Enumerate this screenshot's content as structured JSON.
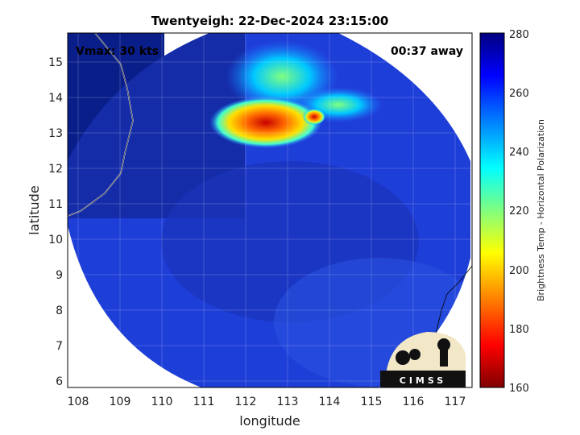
{
  "title": "Twentyeigh: 22-Dec-2024 23:15:00",
  "vmax_text": "Vmax: 30 kts",
  "time_text": "00:37 away",
  "x_axis": {
    "label": "longitude",
    "ticks": [
      "108",
      "109",
      "110",
      "111",
      "112",
      "113",
      "114",
      "115",
      "116",
      "117"
    ]
  },
  "y_axis": {
    "label": "latitude",
    "ticks": [
      "6",
      "7",
      "8",
      "9",
      "10",
      "11",
      "12",
      "13",
      "14",
      "15"
    ]
  },
  "colorbar": {
    "label": "Brightness Temp - Horizontal Polarization",
    "ticks": [
      "160",
      "180",
      "200",
      "220",
      "240",
      "260",
      "280"
    ],
    "min": 160,
    "max": 280,
    "colormap": [
      "#7f0000",
      "#ff0000",
      "#ff8000",
      "#ffff00",
      "#80ff80",
      "#00ffff",
      "#0080ff",
      "#0000ff",
      "#00007f"
    ]
  },
  "logo": {
    "text": "CIMSS"
  },
  "colors": {
    "background_ocean": "#1e3ed8",
    "cold_region": "#0c2590",
    "deep_core": "#c00000"
  }
}
